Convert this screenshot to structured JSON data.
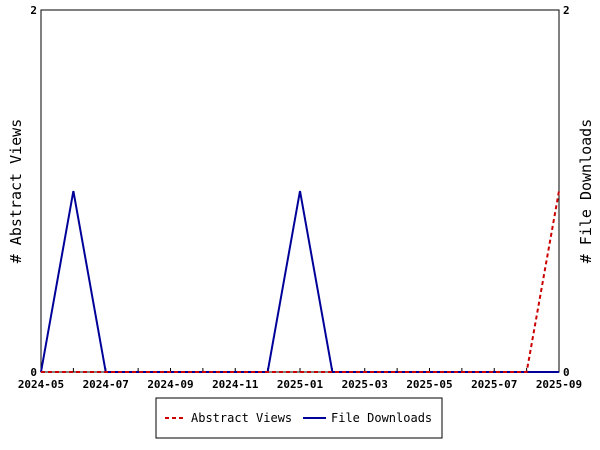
{
  "chart_data": {
    "type": "line",
    "x": [
      "2024-05",
      "2024-06",
      "2024-07",
      "2024-08",
      "2024-09",
      "2024-10",
      "2024-11",
      "2024-12",
      "2025-01",
      "2025-02",
      "2025-03",
      "2025-04",
      "2025-05",
      "2025-06",
      "2025-07",
      "2025-08",
      "2025-09"
    ],
    "series": [
      {
        "name": "Abstract Views",
        "axis": "left",
        "color": "#cc0000",
        "style": "dashed",
        "values": [
          0,
          0,
          0,
          0,
          0,
          0,
          0,
          0,
          0,
          0,
          0,
          0,
          0,
          0,
          0,
          0,
          1
        ]
      },
      {
        "name": "File Downloads",
        "axis": "right",
        "color": "#000099",
        "style": "solid",
        "values": [
          0,
          1,
          0,
          0,
          0,
          0,
          0,
          0,
          1,
          0,
          0,
          0,
          0,
          0,
          0,
          0,
          0
        ]
      }
    ],
    "xlabel": "",
    "ylabel": "# Abstract Views",
    "y2label": "# File Downloads",
    "ylim": [
      0,
      2
    ],
    "y2lim": [
      0,
      2
    ],
    "yticks": [
      "0",
      "2"
    ],
    "y2ticks": [
      "0",
      "2"
    ],
    "xtick_labels": [
      "2024-05",
      "2024-07",
      "2024-09",
      "2024-11",
      "2025-01",
      "2025-03",
      "2025-05",
      "2025-07",
      "2025-09"
    ],
    "grid": false,
    "legend": "bottom"
  }
}
